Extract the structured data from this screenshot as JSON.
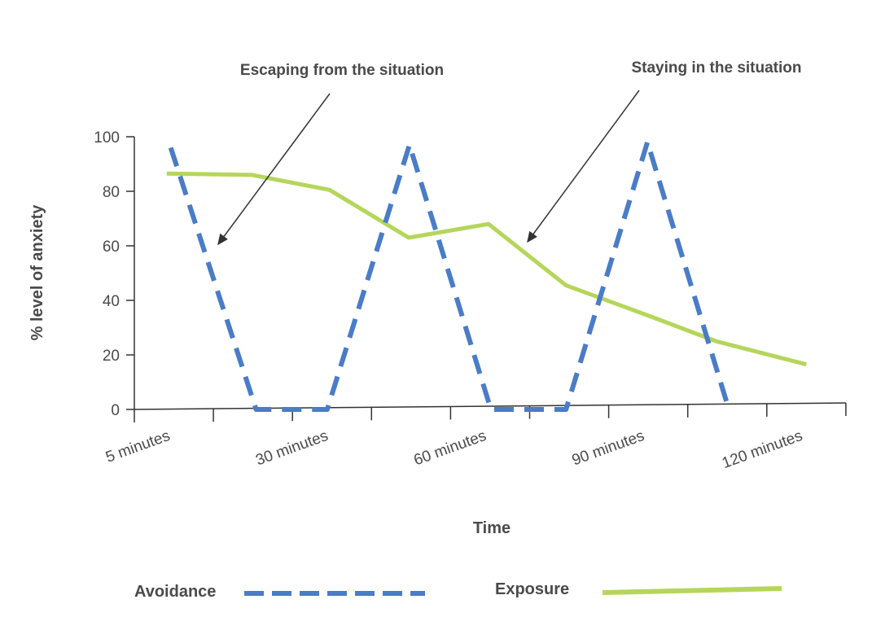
{
  "chart_data": {
    "type": "line",
    "title": "",
    "xlabel": "Time",
    "ylabel": "% level of anxiety",
    "ylim": [
      0,
      100
    ],
    "yticks": [
      "0",
      "20",
      "40",
      "60",
      "80",
      "100"
    ],
    "ytick_values": [
      0,
      20,
      40,
      60,
      80,
      100
    ],
    "x_tick_count": 10,
    "x_tick_labels": [
      {
        "tick": 0,
        "label": "5 minutes"
      },
      {
        "tick": 2,
        "label": "30 minutes"
      },
      {
        "tick": 4,
        "label": "60 minutes"
      },
      {
        "tick": 6,
        "label": "90 minutes"
      },
      {
        "tick": 8,
        "label": "120 minutes"
      }
    ],
    "x_units_note": "x values are in tick positions (0 = 5 minutes, 2 = 30 minutes, 4 = 60 minutes, 6 = 90 minutes, 8 = 120 minutes)",
    "series": [
      {
        "name": "Avoidance",
        "style": "dashed",
        "color": "#4a7cc7",
        "x": [
          0.46,
          1.54,
          2.44,
          3.48,
          4.51,
          5.46,
          6.49,
          7.52
        ],
        "y": [
          96,
          0,
          0,
          97,
          0,
          0,
          98,
          0
        ]
      },
      {
        "name": "Exposure",
        "style": "solid",
        "color": "#b5d65a",
        "x": [
          0.41,
          1.49,
          2.47,
          3.47,
          4.48,
          5.46,
          6.54,
          7.36,
          8.5
        ],
        "y": [
          86.5,
          86,
          80.5,
          63,
          68,
          45.5,
          34,
          25,
          16.5
        ]
      }
    ],
    "annotations": [
      {
        "text": "Escaping from the situation",
        "points_to": "Avoidance"
      },
      {
        "text": "Staying in the situation",
        "points_to": "Exposure"
      }
    ],
    "legend": {
      "placement": "bottom",
      "items": [
        "Avoidance",
        "Exposure"
      ]
    },
    "grid": false
  }
}
